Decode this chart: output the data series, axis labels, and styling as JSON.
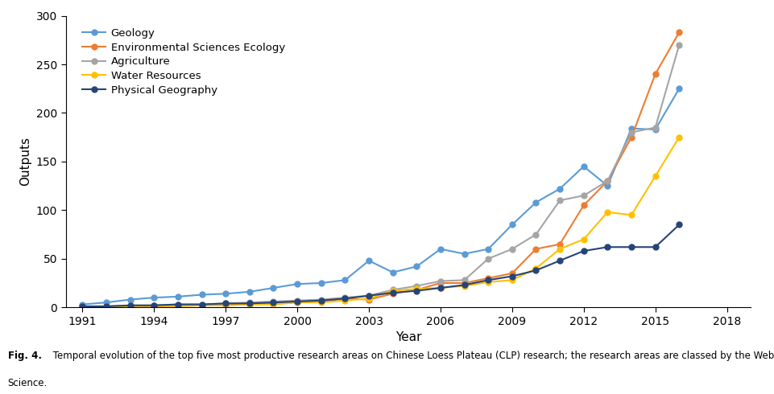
{
  "years": [
    1991,
    1992,
    1993,
    1994,
    1995,
    1996,
    1997,
    1998,
    1999,
    2000,
    2001,
    2002,
    2003,
    2004,
    2005,
    2006,
    2007,
    2008,
    2009,
    2010,
    2011,
    2012,
    2013,
    2014,
    2015,
    2016,
    2017,
    2018
  ],
  "series": [
    {
      "label": "Geology",
      "color": "#5b9bd5",
      "data": [
        3,
        5,
        8,
        10,
        11,
        13,
        14,
        16,
        20,
        24,
        25,
        28,
        48,
        36,
        42,
        60,
        55,
        60,
        85,
        108,
        122,
        145,
        125,
        184,
        183,
        225,
        null,
        null
      ]
    },
    {
      "label": "Environmental Sciences Ecology",
      "color": "#ed7d31",
      "data": [
        1,
        1,
        1,
        2,
        2,
        2,
        3,
        3,
        4,
        5,
        6,
        9,
        8,
        14,
        18,
        25,
        25,
        30,
        35,
        60,
        65,
        105,
        130,
        175,
        240,
        283,
        null,
        null
      ]
    },
    {
      "label": "Agriculture",
      "color": "#a5a5a5",
      "data": [
        1,
        1,
        2,
        2,
        3,
        3,
        4,
        5,
        6,
        7,
        8,
        10,
        12,
        18,
        22,
        27,
        28,
        50,
        60,
        75,
        110,
        115,
        130,
        180,
        185,
        270,
        null,
        null
      ]
    },
    {
      "label": "Water Resources",
      "color": "#ffc000",
      "data": [
        0,
        0,
        1,
        1,
        1,
        2,
        2,
        3,
        3,
        5,
        5,
        7,
        9,
        17,
        19,
        20,
        22,
        26,
        28,
        40,
        60,
        70,
        98,
        95,
        135,
        175,
        null,
        null
      ]
    },
    {
      "label": "Physical Geography",
      "color": "#264478",
      "data": [
        1,
        1,
        2,
        2,
        3,
        3,
        4,
        4,
        5,
        6,
        7,
        9,
        12,
        15,
        17,
        20,
        23,
        28,
        32,
        38,
        48,
        58,
        62,
        62,
        62,
        85,
        null,
        null
      ]
    }
  ],
  "xlabel": "Year",
  "ylabel": "Outputs",
  "ylim": [
    0,
    300
  ],
  "yticks": [
    0,
    50,
    100,
    150,
    200,
    250,
    300
  ],
  "xticks": [
    1991,
    1994,
    1997,
    2000,
    2003,
    2006,
    2009,
    2012,
    2015,
    2018
  ],
  "xlim_left": 1990.3,
  "xlim_right": 2019.0,
  "caption_bold": "Fig. 4.",
  "caption_rest": " Temporal evolution of the top five most productive research areas on Chinese Loess Plateau (CLP) research; the research areas are classed by the Web of",
  "caption_line2": "Science.",
  "background_color": "#ffffff",
  "marker_size": 5,
  "linewidth": 1.5
}
